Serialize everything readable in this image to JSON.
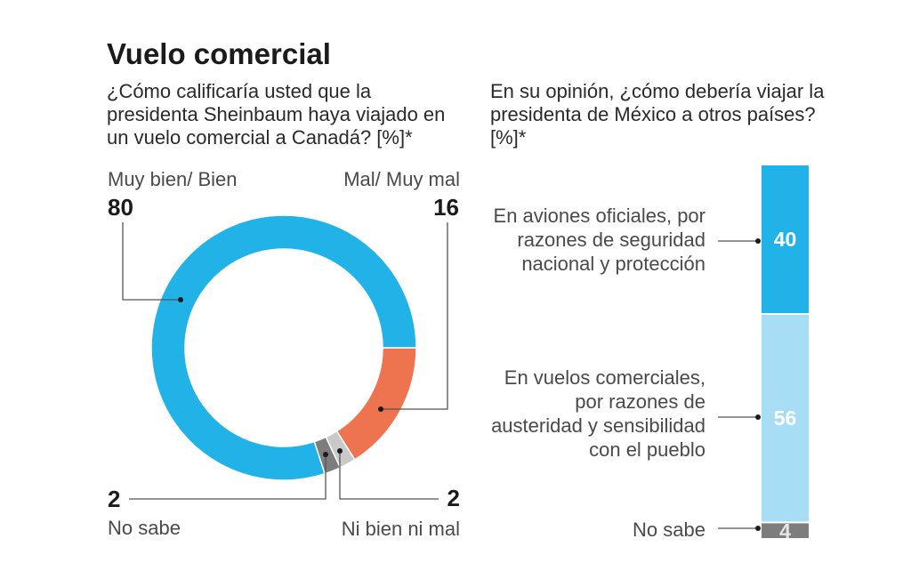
{
  "title": "Vuelo comercial",
  "chart_data": [
    {
      "type": "pie",
      "style": "donut",
      "title_lines": [
        "¿Cómo calificaría usted que la",
        "presidenta Sheinbaum haya viajado en",
        "un vuelo comercial a Canadá? [%]*"
      ],
      "start": "3 o'clock",
      "direction": "clockwise",
      "slices": [
        {
          "label": "Mal/ Muy mal",
          "value": 16,
          "color": "#ee7450"
        },
        {
          "label": "Ni bien ni mal",
          "value": 2,
          "color": "#c9c9c9"
        },
        {
          "label": "No sabe",
          "value": 2,
          "color": "#7d7d7d"
        },
        {
          "label": "Muy bien/ Bien",
          "value": 80,
          "color": "#21b2e8"
        }
      ]
    },
    {
      "type": "bar",
      "style": "stacked-100",
      "title_lines": [
        "En su opinión, ¿cómo debería viajar la",
        "presidenta de México a otros países?",
        "[%]*"
      ],
      "segments": [
        {
          "label_lines": [
            "En aviones oficiales, por",
            "razones de seguridad",
            "nacional y protección"
          ],
          "value": 40,
          "color": "#21b2e8",
          "text_color": "#ffffff"
        },
        {
          "label_lines": [
            "En vuelos comerciales,",
            "por razones de",
            "austeridad y sensibilidad",
            "con el pueblo"
          ],
          "value": 56,
          "color": "#a8ddf6",
          "text_color": "#ffffff"
        },
        {
          "label_lines": [
            "No sabe"
          ],
          "value": 4,
          "color": "#7d7d7d",
          "text_color": "#e6e6e6"
        }
      ]
    }
  ]
}
